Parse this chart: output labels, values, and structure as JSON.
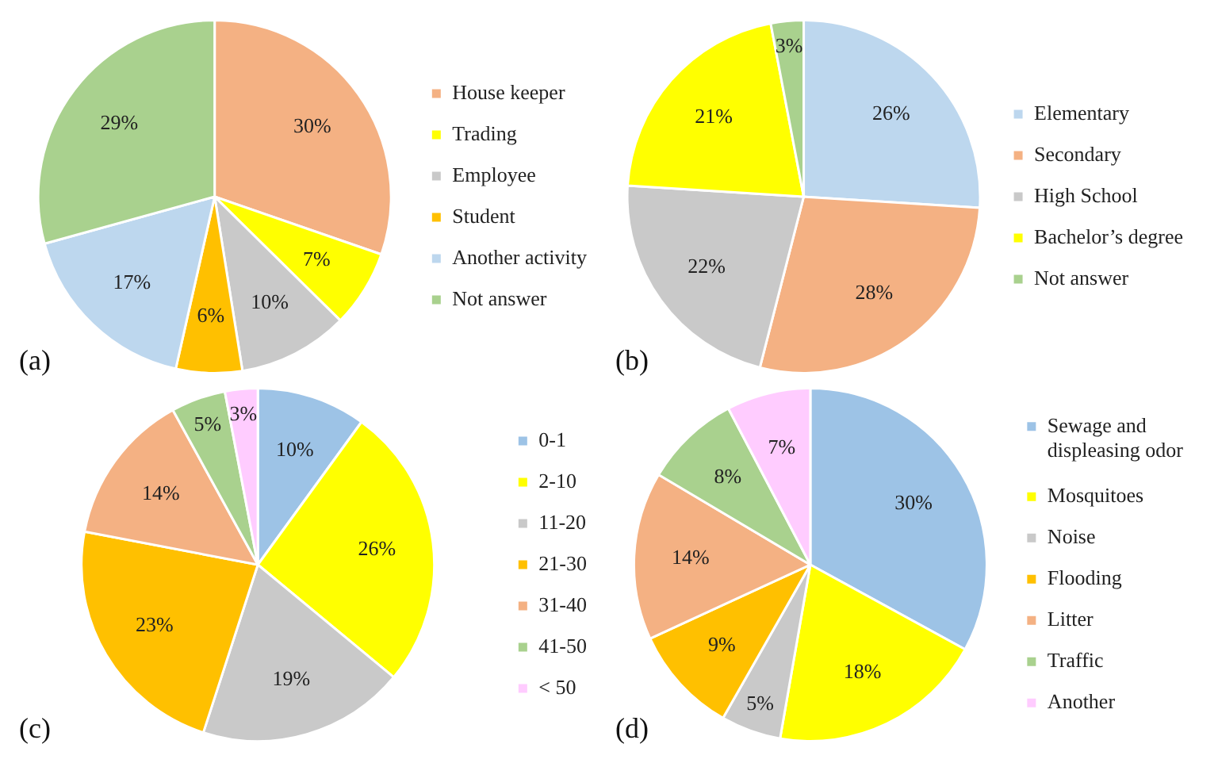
{
  "chart_data": [
    {
      "type": "pie",
      "categories": [
        "House keeper",
        "Trading",
        "Employee",
        "Student",
        "Another activity",
        "Not answer"
      ],
      "values": [
        30,
        7,
        10,
        6,
        17,
        29
      ],
      "value_labels": [
        "30%",
        "7%",
        "10%",
        "6%",
        "17%",
        "29%"
      ],
      "colors": [
        "#f4b183",
        "#ffff00",
        "#c9c9c9",
        "#ffc000",
        "#bdd7ee",
        "#a9d18e"
      ],
      "legend": "right",
      "annotations": [
        "(a)"
      ]
    },
    {
      "type": "pie",
      "categories": [
        "Elementary",
        "Secondary",
        "High School",
        "Bachelor’s degree",
        "Not answer"
      ],
      "values": [
        26,
        28,
        22,
        21,
        3
      ],
      "value_labels": [
        "26%",
        "28%",
        "22%",
        "21%",
        "3%"
      ],
      "colors": [
        "#bdd7ee",
        "#f4b183",
        "#c9c9c9",
        "#ffff00",
        "#a9d18e"
      ],
      "legend": "right",
      "annotations": [
        "(b)"
      ]
    },
    {
      "type": "pie",
      "categories": [
        "0-1",
        "2-10",
        "11-20",
        "21-30",
        "31-40",
        "41-50",
        "< 50"
      ],
      "values": [
        10,
        26,
        19,
        23,
        14,
        5,
        3
      ],
      "value_labels": [
        "10%",
        "26%",
        "19%",
        "23%",
        "14%",
        "5%",
        "3%"
      ],
      "colors": [
        "#9dc3e6",
        "#ffff00",
        "#c9c9c9",
        "#ffc000",
        "#f4b183",
        "#a9d18e",
        "#ffccff"
      ],
      "legend": "right",
      "annotations": [
        "(c)"
      ]
    },
    {
      "type": "pie",
      "categories": [
        "Sewage and displeasing odor",
        "Mosquitoes",
        "Noise",
        "Flooding",
        "Litter",
        "Traffic",
        "Another"
      ],
      "values": [
        30,
        18,
        5,
        9,
        14,
        8,
        7
      ],
      "value_labels": [
        "30%",
        "18%",
        "5%",
        "9%",
        "14%",
        "8%",
        "7%"
      ],
      "colors": [
        "#9dc3e6",
        "#ffff00",
        "#c9c9c9",
        "#ffc000",
        "#f4b183",
        "#a9d18e",
        "#ffccff"
      ],
      "legend": "right",
      "annotations": [
        "(d)"
      ]
    }
  ]
}
